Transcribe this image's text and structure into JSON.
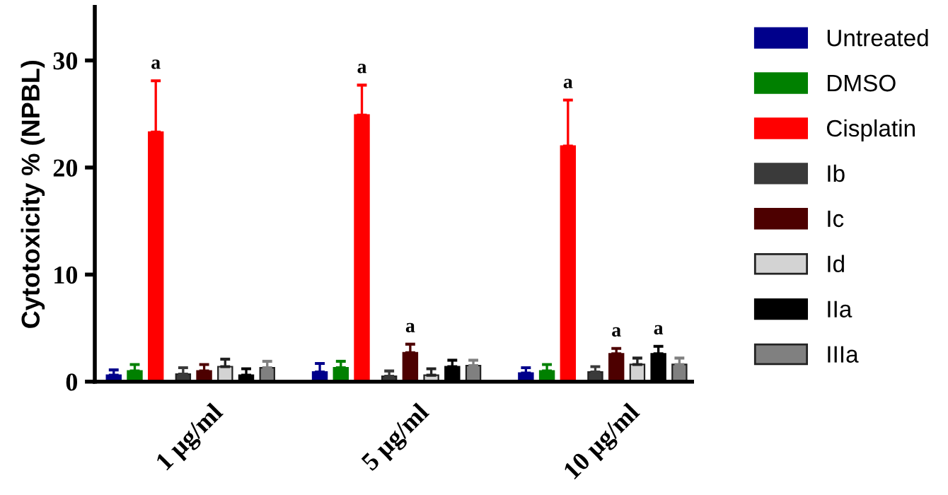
{
  "chart_data": {
    "type": "bar",
    "ylabel": "Cytotoxicity % (NPBL)",
    "categories": [
      "1 µg/ml",
      "5 µg/ml",
      "10 µg/ml"
    ],
    "series": [
      {
        "name": "Untreated",
        "color": "#00008b",
        "values": [
          0.6,
          0.9,
          0.8
        ],
        "errors": [
          [
            0.6,
            1.1
          ],
          [
            0.9,
            1.7
          ],
          [
            0.8,
            1.3
          ]
        ]
      },
      {
        "name": "DMSO",
        "color": "#008000",
        "values": [
          1.0,
          1.3,
          1.0
        ],
        "errors": [
          [
            1.0,
            1.6
          ],
          [
            1.3,
            1.9
          ],
          [
            1.0,
            1.6
          ]
        ]
      },
      {
        "name": "Cisplatin",
        "color": "#ff0000",
        "values": [
          23.3,
          24.9,
          22.0
        ],
        "errors": [
          [
            23.3,
            28.1
          ],
          [
            24.9,
            27.7
          ],
          [
            22.0,
            26.3
          ]
        ]
      },
      {
        "name": "Ib",
        "color": "#3a3a3a",
        "values": [
          0.7,
          0.5,
          0.9
        ],
        "errors": [
          [
            0.7,
            1.3
          ],
          [
            0.5,
            1.0
          ],
          [
            0.9,
            1.4
          ]
        ]
      },
      {
        "name": "Ic",
        "color": "#4d0000",
        "values": [
          1.0,
          2.7,
          2.6
        ],
        "errors": [
          [
            1.0,
            1.6
          ],
          [
            2.7,
            3.5
          ],
          [
            2.6,
            3.1
          ]
        ]
      },
      {
        "name": "Id",
        "color": "#d3d3d3",
        "values": [
          1.4,
          0.6,
          1.6
        ],
        "errors": [
          [
            1.4,
            2.1
          ],
          [
            0.6,
            1.2
          ],
          [
            1.6,
            2.2
          ]
        ]
      },
      {
        "name": "IIa",
        "color": "#000000",
        "values": [
          0.6,
          1.4,
          2.6
        ],
        "errors": [
          [
            0.6,
            1.2
          ],
          [
            1.4,
            2.0
          ],
          [
            2.6,
            3.3
          ]
        ]
      },
      {
        "name": "IIIa",
        "color": "#808080",
        "values": [
          1.3,
          1.5,
          1.6
        ],
        "errors": [
          [
            1.3,
            1.9
          ],
          [
            1.5,
            2.0
          ],
          [
            1.6,
            2.2
          ]
        ]
      }
    ],
    "annotations": [
      "a",
      "a",
      "a",
      "a",
      "a",
      "a"
    ],
    "ylim": [
      0,
      35
    ],
    "yticks": [
      0,
      10,
      20,
      30
    ],
    "grid": false,
    "legend": "right"
  }
}
